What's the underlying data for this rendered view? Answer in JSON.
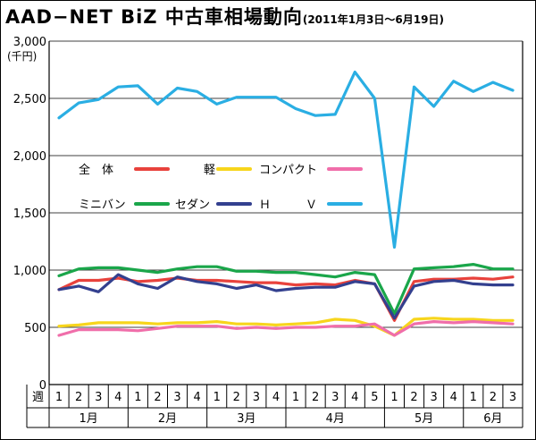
{
  "page": {
    "title": "AAD−NET BiZ 中古車相場動向",
    "subtitle": "(2011年1月3日〜6月19日)"
  },
  "chart_data": {
    "type": "line",
    "title": "AAD−NET BiZ 中古車相場動向",
    "subtitle": "(2011年1月3日〜6月19日)",
    "ylabel": "(千円)",
    "ylim": [
      0,
      3000
    ],
    "yticks": [
      0,
      500,
      1000,
      1500,
      2000,
      2500,
      3000
    ],
    "ytick_labels": [
      "0",
      "500",
      "1,000",
      "1,500",
      "2,000",
      "2,500",
      "3,000"
    ],
    "grid": true,
    "week_header": "週",
    "categories": [
      "1",
      "2",
      "3",
      "4",
      "1",
      "2",
      "3",
      "4",
      "1",
      "2",
      "3",
      "4",
      "1",
      "2",
      "3",
      "4",
      "5",
      "1",
      "2",
      "3",
      "4",
      "1",
      "2",
      "3"
    ],
    "months": [
      {
        "label": "1月",
        "weeks": 4
      },
      {
        "label": "2月",
        "weeks": 4
      },
      {
        "label": "3月",
        "weeks": 4
      },
      {
        "label": "4月",
        "weeks": 5
      },
      {
        "label": "5月",
        "weeks": 4
      },
      {
        "label": "6月",
        "weeks": 3
      }
    ],
    "legend_position": "upper-left",
    "series": [
      {
        "name": "全　体",
        "color": "#e8423c",
        "values": [
          830,
          910,
          910,
          930,
          900,
          910,
          930,
          910,
          910,
          900,
          890,
          890,
          870,
          880,
          870,
          910,
          880,
          560,
          900,
          920,
          920,
          930,
          920,
          940
        ]
      },
      {
        "name": "軽",
        "color": "#f7d51c",
        "values": [
          510,
          520,
          540,
          540,
          540,
          530,
          540,
          540,
          550,
          530,
          530,
          520,
          530,
          540,
          570,
          560,
          510,
          430,
          570,
          580,
          570,
          570,
          560,
          560
        ]
      },
      {
        "name": "コンパクト",
        "color": "#f06eaa",
        "values": [
          430,
          480,
          480,
          480,
          470,
          490,
          510,
          510,
          510,
          490,
          500,
          490,
          500,
          500,
          510,
          510,
          530,
          430,
          530,
          550,
          540,
          550,
          540,
          530
        ]
      },
      {
        "name": "ミニバン",
        "color": "#1aa64a",
        "values": [
          950,
          1010,
          1020,
          1020,
          1000,
          980,
          1010,
          1030,
          1030,
          990,
          990,
          980,
          980,
          960,
          940,
          980,
          960,
          620,
          1010,
          1020,
          1030,
          1050,
          1010,
          1010
        ]
      },
      {
        "name": "セダン",
        "color": "#33408f",
        "values": [
          830,
          860,
          810,
          960,
          880,
          840,
          940,
          900,
          880,
          840,
          870,
          820,
          840,
          850,
          850,
          900,
          880,
          580,
          860,
          900,
          910,
          880,
          870,
          870
        ]
      },
      {
        "name": "Ｈ　　　Ｖ",
        "color": "#2aaee3",
        "values": [
          2330,
          2460,
          2490,
          2600,
          2610,
          2450,
          2590,
          2560,
          2450,
          2510,
          2510,
          2510,
          2410,
          2350,
          2360,
          2730,
          2500,
          1200,
          2600,
          2430,
          2650,
          2560,
          2640,
          2570
        ]
      }
    ]
  }
}
